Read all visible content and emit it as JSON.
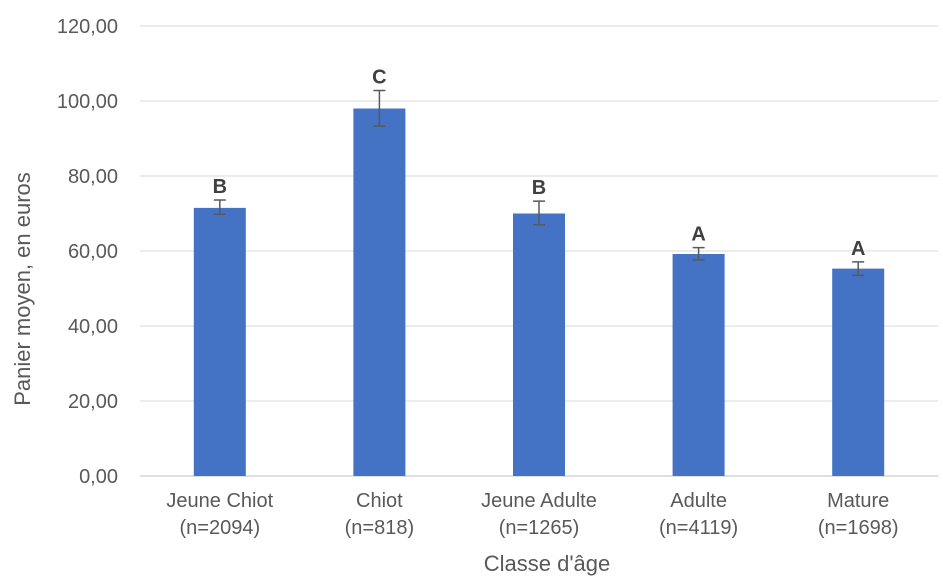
{
  "chart_data": {
    "type": "bar",
    "xlabel": "Classe d'âge",
    "ylabel": "Panier moyen, en euros",
    "ylim": [
      0,
      120
    ],
    "yticks": [
      "0,00",
      "20,00",
      "40,00",
      "60,00",
      "80,00",
      "100,00",
      "120,00"
    ],
    "grid": true,
    "color": "#4472c4",
    "categories": [
      {
        "name": "Jeune Chiot",
        "n": "(n=2094)"
      },
      {
        "name": "Chiot",
        "n": "(n=818)"
      },
      {
        "name": "Jeune Adulte",
        "n": "(n=1265)"
      },
      {
        "name": "Adulte",
        "n": "(n=4119)"
      },
      {
        "name": "Mature",
        "n": "(n=1698)"
      }
    ],
    "values": [
      71.5,
      98.0,
      70.0,
      59.2,
      55.3
    ],
    "error_low": [
      69.8,
      93.3,
      67.0,
      57.6,
      53.5
    ],
    "error_high": [
      73.6,
      102.8,
      73.3,
      60.9,
      57.1
    ],
    "significance": [
      "B",
      "C",
      "B",
      "A",
      "A"
    ]
  }
}
